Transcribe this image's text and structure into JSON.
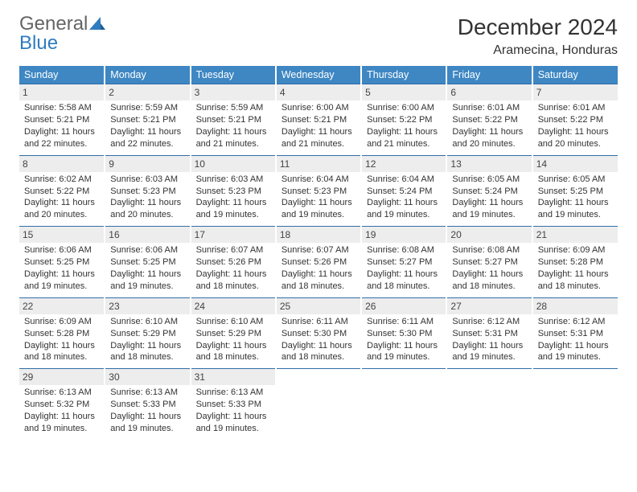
{
  "logo": {
    "word1": "General",
    "word2": "Blue"
  },
  "title": "December 2024",
  "subtitle": "Aramecina, Honduras",
  "colors": {
    "header_bg": "#3e87c3",
    "header_text": "#ffffff",
    "rule": "#2f6fa8",
    "daynum_bg": "#ededed",
    "logo_grey": "#656565",
    "logo_blue": "#2f7bbf"
  },
  "day_names": [
    "Sunday",
    "Monday",
    "Tuesday",
    "Wednesday",
    "Thursday",
    "Friday",
    "Saturday"
  ],
  "weeks": [
    [
      {
        "n": "1",
        "sr": "Sunrise: 5:58 AM",
        "ss": "Sunset: 5:21 PM",
        "dl": "Daylight: 11 hours and 22 minutes."
      },
      {
        "n": "2",
        "sr": "Sunrise: 5:59 AM",
        "ss": "Sunset: 5:21 PM",
        "dl": "Daylight: 11 hours and 22 minutes."
      },
      {
        "n": "3",
        "sr": "Sunrise: 5:59 AM",
        "ss": "Sunset: 5:21 PM",
        "dl": "Daylight: 11 hours and 21 minutes."
      },
      {
        "n": "4",
        "sr": "Sunrise: 6:00 AM",
        "ss": "Sunset: 5:21 PM",
        "dl": "Daylight: 11 hours and 21 minutes."
      },
      {
        "n": "5",
        "sr": "Sunrise: 6:00 AM",
        "ss": "Sunset: 5:22 PM",
        "dl": "Daylight: 11 hours and 21 minutes."
      },
      {
        "n": "6",
        "sr": "Sunrise: 6:01 AM",
        "ss": "Sunset: 5:22 PM",
        "dl": "Daylight: 11 hours and 20 minutes."
      },
      {
        "n": "7",
        "sr": "Sunrise: 6:01 AM",
        "ss": "Sunset: 5:22 PM",
        "dl": "Daylight: 11 hours and 20 minutes."
      }
    ],
    [
      {
        "n": "8",
        "sr": "Sunrise: 6:02 AM",
        "ss": "Sunset: 5:22 PM",
        "dl": "Daylight: 11 hours and 20 minutes."
      },
      {
        "n": "9",
        "sr": "Sunrise: 6:03 AM",
        "ss": "Sunset: 5:23 PM",
        "dl": "Daylight: 11 hours and 20 minutes."
      },
      {
        "n": "10",
        "sr": "Sunrise: 6:03 AM",
        "ss": "Sunset: 5:23 PM",
        "dl": "Daylight: 11 hours and 19 minutes."
      },
      {
        "n": "11",
        "sr": "Sunrise: 6:04 AM",
        "ss": "Sunset: 5:23 PM",
        "dl": "Daylight: 11 hours and 19 minutes."
      },
      {
        "n": "12",
        "sr": "Sunrise: 6:04 AM",
        "ss": "Sunset: 5:24 PM",
        "dl": "Daylight: 11 hours and 19 minutes."
      },
      {
        "n": "13",
        "sr": "Sunrise: 6:05 AM",
        "ss": "Sunset: 5:24 PM",
        "dl": "Daylight: 11 hours and 19 minutes."
      },
      {
        "n": "14",
        "sr": "Sunrise: 6:05 AM",
        "ss": "Sunset: 5:25 PM",
        "dl": "Daylight: 11 hours and 19 minutes."
      }
    ],
    [
      {
        "n": "15",
        "sr": "Sunrise: 6:06 AM",
        "ss": "Sunset: 5:25 PM",
        "dl": "Daylight: 11 hours and 19 minutes."
      },
      {
        "n": "16",
        "sr": "Sunrise: 6:06 AM",
        "ss": "Sunset: 5:25 PM",
        "dl": "Daylight: 11 hours and 19 minutes."
      },
      {
        "n": "17",
        "sr": "Sunrise: 6:07 AM",
        "ss": "Sunset: 5:26 PM",
        "dl": "Daylight: 11 hours and 18 minutes."
      },
      {
        "n": "18",
        "sr": "Sunrise: 6:07 AM",
        "ss": "Sunset: 5:26 PM",
        "dl": "Daylight: 11 hours and 18 minutes."
      },
      {
        "n": "19",
        "sr": "Sunrise: 6:08 AM",
        "ss": "Sunset: 5:27 PM",
        "dl": "Daylight: 11 hours and 18 minutes."
      },
      {
        "n": "20",
        "sr": "Sunrise: 6:08 AM",
        "ss": "Sunset: 5:27 PM",
        "dl": "Daylight: 11 hours and 18 minutes."
      },
      {
        "n": "21",
        "sr": "Sunrise: 6:09 AM",
        "ss": "Sunset: 5:28 PM",
        "dl": "Daylight: 11 hours and 18 minutes."
      }
    ],
    [
      {
        "n": "22",
        "sr": "Sunrise: 6:09 AM",
        "ss": "Sunset: 5:28 PM",
        "dl": "Daylight: 11 hours and 18 minutes."
      },
      {
        "n": "23",
        "sr": "Sunrise: 6:10 AM",
        "ss": "Sunset: 5:29 PM",
        "dl": "Daylight: 11 hours and 18 minutes."
      },
      {
        "n": "24",
        "sr": "Sunrise: 6:10 AM",
        "ss": "Sunset: 5:29 PM",
        "dl": "Daylight: 11 hours and 18 minutes."
      },
      {
        "n": "25",
        "sr": "Sunrise: 6:11 AM",
        "ss": "Sunset: 5:30 PM",
        "dl": "Daylight: 11 hours and 18 minutes."
      },
      {
        "n": "26",
        "sr": "Sunrise: 6:11 AM",
        "ss": "Sunset: 5:30 PM",
        "dl": "Daylight: 11 hours and 19 minutes."
      },
      {
        "n": "27",
        "sr": "Sunrise: 6:12 AM",
        "ss": "Sunset: 5:31 PM",
        "dl": "Daylight: 11 hours and 19 minutes."
      },
      {
        "n": "28",
        "sr": "Sunrise: 6:12 AM",
        "ss": "Sunset: 5:31 PM",
        "dl": "Daylight: 11 hours and 19 minutes."
      }
    ],
    [
      {
        "n": "29",
        "sr": "Sunrise: 6:13 AM",
        "ss": "Sunset: 5:32 PM",
        "dl": "Daylight: 11 hours and 19 minutes."
      },
      {
        "n": "30",
        "sr": "Sunrise: 6:13 AM",
        "ss": "Sunset: 5:33 PM",
        "dl": "Daylight: 11 hours and 19 minutes."
      },
      {
        "n": "31",
        "sr": "Sunrise: 6:13 AM",
        "ss": "Sunset: 5:33 PM",
        "dl": "Daylight: 11 hours and 19 minutes."
      },
      null,
      null,
      null,
      null
    ]
  ]
}
